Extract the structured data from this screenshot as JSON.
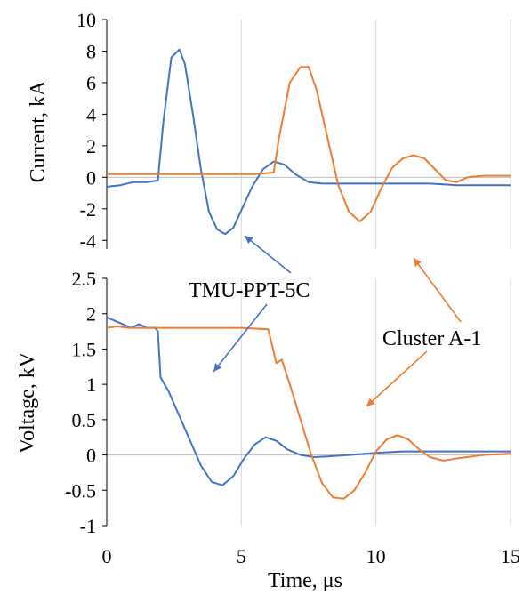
{
  "colors": {
    "tmu": "#4472C4",
    "cluster": "#ED7D31",
    "axis": "#000000",
    "grid": "#d9d9d9"
  },
  "chart_data": [
    {
      "type": "line",
      "ylabel": "Current, kA",
      "xlim": [
        0,
        15
      ],
      "ylim": [
        -5,
        10
      ],
      "y_ticks": [
        "10",
        "8",
        "6",
        "4",
        "2",
        "0",
        "-2",
        "-4"
      ],
      "grid": "vertical lines at x = 5, 10, 15; zero line",
      "series": [
        {
          "name": "TMU-PPT-5C",
          "x": [
            0,
            0.5,
            1,
            1.5,
            1.9,
            2.1,
            2.4,
            2.7,
            2.9,
            3.2,
            3.5,
            3.8,
            4.1,
            4.4,
            4.7,
            5.0,
            5.4,
            5.8,
            6.2,
            6.6,
            7.0,
            7.5,
            8,
            9,
            10,
            11,
            12,
            13,
            14,
            15
          ],
          "y": [
            -0.6,
            -0.5,
            -0.3,
            -0.3,
            -0.2,
            3.5,
            7.6,
            8.1,
            7.2,
            4.0,
            0.5,
            -2.2,
            -3.3,
            -3.6,
            -3.2,
            -2.1,
            -0.6,
            0.5,
            1.0,
            0.8,
            0.2,
            -0.3,
            -0.4,
            -0.4,
            -0.4,
            -0.4,
            -0.4,
            -0.5,
            -0.5,
            -0.5
          ]
        },
        {
          "name": "Cluster A-1",
          "x": [
            0,
            2,
            4,
            5.5,
            6.2,
            6.4,
            6.8,
            7.2,
            7.5,
            7.8,
            8.2,
            8.6,
            9.0,
            9.4,
            9.8,
            10.2,
            10.6,
            11.0,
            11.4,
            11.8,
            12.2,
            12.6,
            13.0,
            13.4,
            14,
            15
          ],
          "y": [
            0.2,
            0.2,
            0.2,
            0.2,
            0.3,
            2.5,
            6.0,
            7.0,
            7.0,
            5.5,
            2.5,
            -0.5,
            -2.2,
            -2.8,
            -2.2,
            -0.7,
            0.6,
            1.2,
            1.4,
            1.2,
            0.5,
            -0.2,
            -0.3,
            0.0,
            0.1,
            0.1
          ]
        }
      ]
    },
    {
      "type": "line",
      "xlabel": "Time, μs",
      "ylabel": "Voltage, kV",
      "xlim": [
        0,
        15
      ],
      "ylim": [
        -1,
        2.5
      ],
      "x_ticks": [
        "0",
        "5",
        "10",
        "15"
      ],
      "y_ticks": [
        "2.5",
        "2",
        "1.5",
        "1",
        "0.5",
        "0",
        "-0.5",
        "-1"
      ],
      "grid": "vertical lines at x = 5, 10, 15; zero line",
      "series": [
        {
          "name": "TMU-PPT-5C",
          "x": [
            0,
            0.3,
            0.6,
            0.9,
            1.2,
            1.5,
            1.8,
            1.9,
            2.0,
            2.3,
            2.7,
            3.1,
            3.5,
            3.9,
            4.3,
            4.7,
            5.1,
            5.5,
            5.9,
            6.3,
            6.7,
            7.2,
            7.7,
            8.2,
            9,
            10,
            11,
            12,
            13,
            14,
            15
          ],
          "y": [
            1.95,
            1.9,
            1.85,
            1.8,
            1.85,
            1.8,
            1.8,
            1.75,
            1.1,
            0.9,
            0.55,
            0.2,
            -0.15,
            -0.38,
            -0.43,
            -0.3,
            -0.05,
            0.15,
            0.25,
            0.2,
            0.08,
            0.0,
            -0.03,
            -0.02,
            0.0,
            0.03,
            0.05,
            0.05,
            0.05,
            0.05,
            0.05
          ]
        },
        {
          "name": "Cluster A-1",
          "x": [
            0,
            0.4,
            0.8,
            1.2,
            2,
            3,
            4,
            5,
            6.0,
            6.3,
            6.5,
            6.8,
            7.2,
            7.6,
            8.0,
            8.4,
            8.8,
            9.2,
            9.6,
            10.0,
            10.4,
            10.8,
            11.2,
            11.6,
            12.0,
            12.5,
            13,
            14,
            15
          ],
          "y": [
            1.8,
            1.82,
            1.8,
            1.8,
            1.8,
            1.8,
            1.8,
            1.8,
            1.78,
            1.3,
            1.35,
            1.0,
            0.5,
            0.0,
            -0.4,
            -0.6,
            -0.62,
            -0.5,
            -0.25,
            0.05,
            0.22,
            0.28,
            0.22,
            0.08,
            -0.03,
            -0.08,
            -0.05,
            0.0,
            0.02
          ]
        }
      ]
    }
  ],
  "annotations": {
    "tmu_label": "TMU-PPT-5C",
    "cluster_label": "Cluster A-1"
  }
}
